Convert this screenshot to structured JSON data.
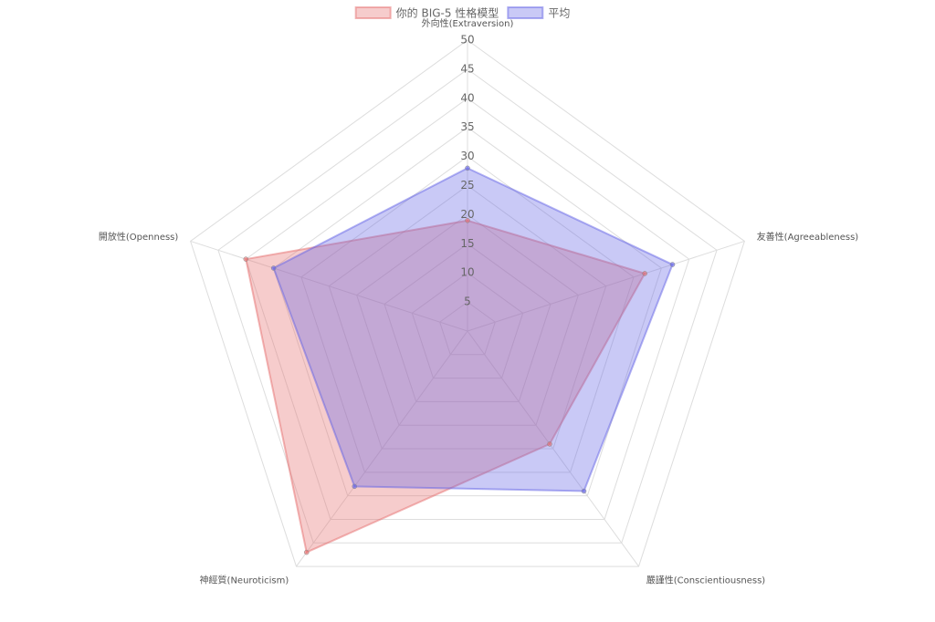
{
  "chart_data": {
    "type": "radar",
    "categories": [
      "外向性(Extraversion)",
      "友善性(Agreeableness)",
      "嚴謹性(Conscientiousness)",
      "神經質(Neuroticism)",
      "開放性(Openness)"
    ],
    "series": [
      {
        "name": "你的 BIG-5 性格模型",
        "color": "rgb(230,110,110)",
        "values": [
          19,
          32,
          24,
          47,
          40
        ]
      },
      {
        "name": "平均",
        "color": "rgb(100,100,230)",
        "values": [
          28,
          37,
          34,
          33,
          35
        ]
      }
    ],
    "ylim": [
      0,
      50
    ],
    "yticks": [
      5,
      10,
      15,
      20,
      25,
      30,
      35,
      40,
      45,
      50
    ],
    "grid": true
  }
}
